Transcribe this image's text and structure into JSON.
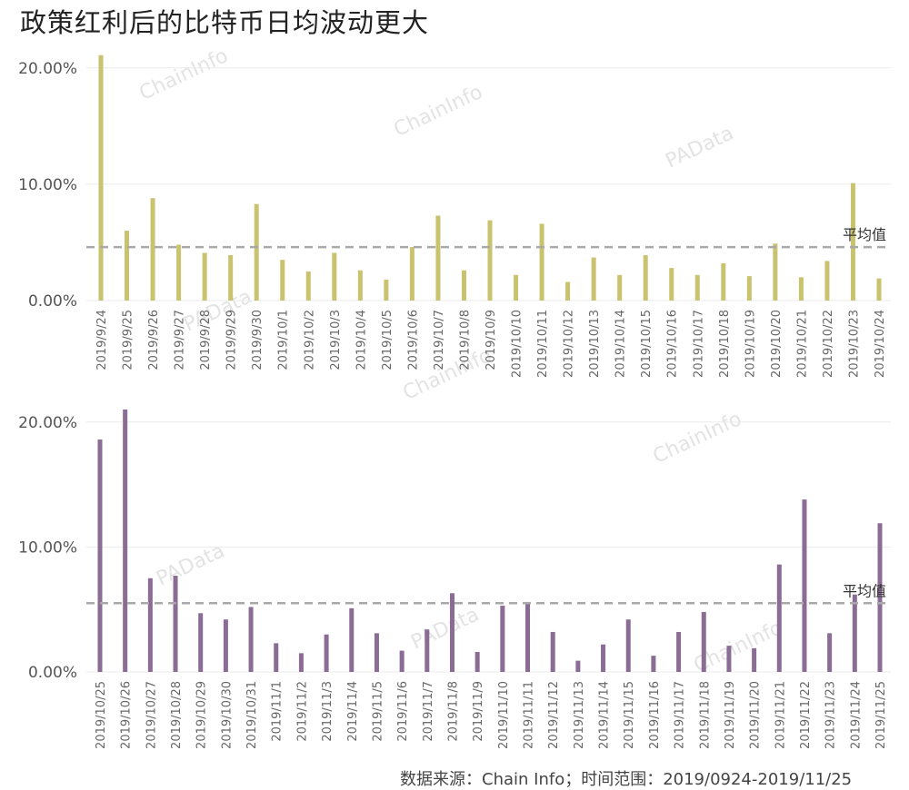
{
  "title": "政策红利后的比特币日均波动更大",
  "source": "数据来源：Chain Info；时间范围：2019/0924-2019/11/25",
  "watermarks": [
    "ChainInfo",
    "PAData"
  ],
  "colors": {
    "series1": "#c9c26e",
    "series2": "#8a6c94",
    "avg_line": "#a9a9a9",
    "grid": "#ebebeb"
  },
  "chart_data": [
    {
      "type": "bar",
      "title": "",
      "ylim": [
        0,
        21
      ],
      "yticks": [
        0,
        10,
        20
      ],
      "yticklabels": [
        "0.00%",
        "10.00%",
        "20.00%"
      ],
      "avg_label": "平均值",
      "avg_value": 4.6,
      "categories": [
        "2019/9/24",
        "2019/9/25",
        "2019/9/26",
        "2019/9/27",
        "2019/9/28",
        "2019/9/29",
        "2019/9/30",
        "2019/10/1",
        "2019/10/2",
        "2019/10/3",
        "2019/10/4",
        "2019/10/5",
        "2019/10/6",
        "2019/10/7",
        "2019/10/8",
        "2019/10/9",
        "2019/10/10",
        "2019/10/11",
        "2019/10/12",
        "2019/10/13",
        "2019/10/14",
        "2019/10/15",
        "2019/10/16",
        "2019/10/17",
        "2019/10/18",
        "2019/10/19",
        "2019/10/20",
        "2019/10/21",
        "2019/10/22",
        "2019/10/23",
        "2019/10/24"
      ],
      "values": [
        21.1,
        6.0,
        8.8,
        4.8,
        4.1,
        3.9,
        8.3,
        3.5,
        2.5,
        4.1,
        2.6,
        1.8,
        4.6,
        7.3,
        2.6,
        6.9,
        2.2,
        6.6,
        1.6,
        3.7,
        2.2,
        3.9,
        2.8,
        2.2,
        3.2,
        2.1,
        4.9,
        2.0,
        3.4,
        10.1,
        1.9
      ],
      "grid": true
    },
    {
      "type": "bar",
      "title": "",
      "ylim": [
        0,
        21
      ],
      "yticks": [
        0,
        10,
        20
      ],
      "yticklabels": [
        "0.00%",
        "10.00%",
        "20.00%"
      ],
      "avg_label": "平均值",
      "avg_value": 5.5,
      "categories": [
        "2019/10/25",
        "2019/10/26",
        "2019/10/27",
        "2019/10/28",
        "2019/10/29",
        "2019/10/30",
        "2019/10/31",
        "2019/11/1",
        "2019/11/2",
        "2019/11/3",
        "2019/11/4",
        "2019/11/5",
        "2019/11/6",
        "2019/11/7",
        "2019/11/8",
        "2019/11/9",
        "2019/11/10",
        "2019/11/11",
        "2019/11/12",
        "2019/11/13",
        "2019/11/14",
        "2019/11/15",
        "2019/11/16",
        "2019/11/17",
        "2019/11/18",
        "2019/11/19",
        "2019/11/20",
        "2019/11/21",
        "2019/11/22",
        "2019/11/23",
        "2019/11/24",
        "2019/11/25"
      ],
      "values": [
        18.6,
        21.0,
        7.5,
        7.7,
        4.7,
        4.2,
        5.2,
        2.3,
        1.5,
        3.0,
        5.1,
        3.1,
        1.7,
        3.4,
        6.3,
        1.6,
        5.3,
        5.6,
        3.2,
        0.9,
        2.2,
        4.2,
        1.3,
        3.2,
        4.8,
        2.1,
        1.9,
        8.6,
        13.8,
        3.1,
        6.2,
        11.9
      ],
      "grid": true
    }
  ]
}
